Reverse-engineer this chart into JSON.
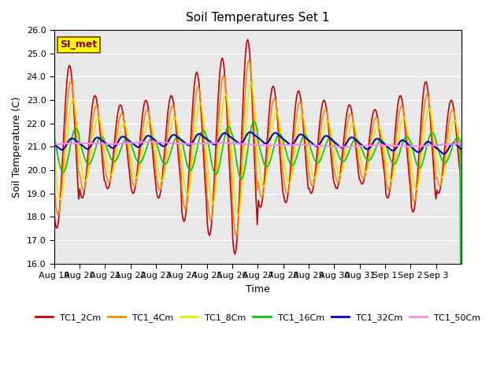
{
  "title": "Soil Temperatures Set 1",
  "xlabel": "Time",
  "ylabel": "Soil Temperature (C)",
  "ylim": [
    16.0,
    26.0
  ],
  "yticks": [
    16.0,
    17.0,
    18.0,
    19.0,
    20.0,
    21.0,
    22.0,
    23.0,
    24.0,
    25.0,
    26.0
  ],
  "bg_color": "#e8e8e8",
  "fig_color": "#ffffff",
  "grid_color": "#ffffff",
  "annotation_text": "SI_met",
  "annotation_bg": "#ffff00",
  "annotation_border": "#8b6914",
  "series_names": [
    "TC1_2Cm",
    "TC1_4Cm",
    "TC1_8Cm",
    "TC1_16Cm",
    "TC1_32Cm",
    "TC1_50Cm"
  ],
  "series_colors": [
    "#cc0000",
    "#ff8c00",
    "#e8e800",
    "#00cc00",
    "#0000cc",
    "#ff88ff"
  ],
  "series_lw": [
    1.2,
    1.2,
    1.2,
    1.2,
    1.5,
    1.5
  ],
  "xtick_labels": [
    "Aug 19",
    "Aug 20",
    "Aug 21",
    "Aug 22",
    "Aug 23",
    "Aug 24",
    "Aug 25",
    "Aug 26",
    "Aug 27",
    "Aug 28",
    "Aug 29",
    "Aug 30",
    "Aug 31",
    "Sep 1",
    "Sep 2",
    "Sep 3"
  ],
  "n_days": 16,
  "pts_per_day": 24
}
